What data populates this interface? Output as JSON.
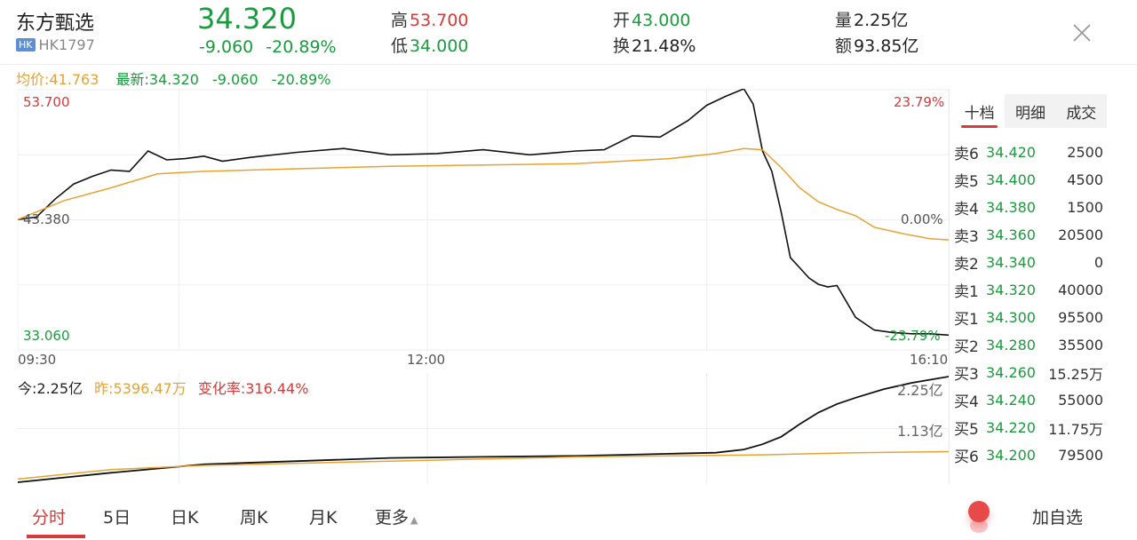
{
  "header": {
    "name": "东方甄选",
    "exchange_badge": "HK",
    "code": "HK1797",
    "price": "34.320",
    "change": "-9.060",
    "change_pct": "-20.89%",
    "high_label": "高",
    "high": "53.700",
    "low_label": "低",
    "low": "34.000",
    "open_label": "开",
    "open": "43.000",
    "turnover_label": "换",
    "turnover": "21.48%",
    "volume_label": "量",
    "volume": "2.25亿",
    "amount_label": "额",
    "amount": "93.85亿"
  },
  "legend": {
    "avg_label": "均价:",
    "avg": "41.763",
    "latest_label": "最新:",
    "latest": "34.320",
    "latest_change": "-9.060",
    "latest_pct": "-20.89%"
  },
  "chart_data": {
    "type": "line",
    "title": "",
    "xlabel": "",
    "ylabel": "",
    "x_ticks": [
      "09:30",
      "12:00",
      "16:10"
    ],
    "ylim": [
      33.06,
      53.7
    ],
    "y_labels": {
      "top": "53.700",
      "middle": "43.380",
      "bottom": "33.060"
    },
    "pct_labels": {
      "top": "23.79%",
      "middle": "0.00%",
      "bottom": "-23.79%"
    },
    "series": [
      {
        "color": "#111111",
        "x": [
          0,
          0.02,
          0.04,
          0.06,
          0.08,
          0.1,
          0.12,
          0.14,
          0.16,
          0.18,
          0.2,
          0.22,
          0.25,
          0.3,
          0.35,
          0.4,
          0.45,
          0.5,
          0.55,
          0.6,
          0.63,
          0.66,
          0.69,
          0.72,
          0.74,
          0.76,
          0.78,
          0.79,
          0.8,
          0.81,
          0.82,
          0.83,
          0.84,
          0.85,
          0.86,
          0.87,
          0.88,
          0.9,
          0.92,
          0.94,
          0.96,
          0.98,
          1.0
        ],
        "values": [
          43.4,
          43.6,
          45.0,
          46.2,
          46.8,
          47.3,
          47.2,
          48.8,
          48.1,
          48.2,
          48.4,
          48.0,
          48.3,
          48.7,
          49.0,
          48.5,
          48.6,
          48.9,
          48.5,
          48.8,
          48.9,
          50.0,
          49.9,
          51.2,
          52.4,
          53.1,
          53.7,
          52.5,
          48.8,
          47.2,
          44.0,
          40.4,
          39.6,
          38.8,
          38.3,
          38.1,
          38.2,
          35.7,
          34.7,
          34.5,
          34.4,
          34.4,
          34.3
        ]
      },
      {
        "color": "#e8a232",
        "x": [
          0,
          0.05,
          0.1,
          0.15,
          0.2,
          0.3,
          0.4,
          0.5,
          0.6,
          0.7,
          0.75,
          0.78,
          0.8,
          0.82,
          0.84,
          0.86,
          0.88,
          0.9,
          0.92,
          0.95,
          0.98,
          1.0
        ],
        "values": [
          43.4,
          44.9,
          45.9,
          47.0,
          47.2,
          47.4,
          47.6,
          47.7,
          47.8,
          48.2,
          48.6,
          49.0,
          48.9,
          47.5,
          45.9,
          44.8,
          44.2,
          43.7,
          42.8,
          42.3,
          41.9,
          41.8
        ]
      }
    ]
  },
  "volume_chart": {
    "type": "area",
    "today_label": "今:",
    "today": "2.25亿",
    "yesterday_label": "昨:",
    "yesterday": "5396.47万",
    "change_rate_label": "变化率:",
    "change_rate": "316.44%",
    "max_label": "2.25亿",
    "mid_label": "1.13亿",
    "series": [
      {
        "color": "#111111",
        "x": [
          0,
          0.1,
          0.2,
          0.3,
          0.4,
          0.5,
          0.6,
          0.65,
          0.7,
          0.75,
          0.78,
          0.8,
          0.82,
          0.84,
          0.86,
          0.88,
          0.9,
          0.93,
          0.96,
          1.0
        ],
        "values": [
          0.0,
          0.09,
          0.17,
          0.2,
          0.23,
          0.24,
          0.25,
          0.26,
          0.27,
          0.28,
          0.31,
          0.36,
          0.43,
          0.55,
          0.66,
          0.74,
          0.8,
          0.88,
          0.94,
          1.0
        ]
      },
      {
        "color": "#e8a232",
        "x": [
          0,
          0.1,
          0.2,
          0.3,
          0.4,
          0.5,
          0.6,
          0.7,
          0.8,
          0.9,
          1.0
        ],
        "values": [
          0.03,
          0.12,
          0.16,
          0.18,
          0.2,
          0.22,
          0.24,
          0.25,
          0.26,
          0.28,
          0.29
        ]
      }
    ]
  },
  "right_panel": {
    "tabs": [
      "十档",
      "明细",
      "成交"
    ],
    "asks": [
      {
        "label": "卖6",
        "price": "34.420",
        "qty": "2500"
      },
      {
        "label": "卖5",
        "price": "34.400",
        "qty": "4500"
      },
      {
        "label": "卖4",
        "price": "34.380",
        "qty": "1500"
      },
      {
        "label": "卖3",
        "price": "34.360",
        "qty": "20500"
      },
      {
        "label": "卖2",
        "price": "34.340",
        "qty": "0"
      },
      {
        "label": "卖1",
        "price": "34.320",
        "qty": "40000"
      }
    ],
    "bids": [
      {
        "label": "买1",
        "price": "34.300",
        "qty": "95500"
      },
      {
        "label": "买2",
        "price": "34.280",
        "qty": "35500"
      },
      {
        "label": "买3",
        "price": "34.260",
        "qty": "15.25万"
      },
      {
        "label": "买4",
        "price": "34.240",
        "qty": "55000"
      },
      {
        "label": "买5",
        "price": "34.220",
        "qty": "11.75万"
      },
      {
        "label": "买6",
        "price": "34.200",
        "qty": "79500"
      }
    ]
  },
  "bottom_tabs": [
    "分时",
    "5日",
    "日K",
    "周K",
    "月K",
    "更多"
  ],
  "add_watchlist": "加自选",
  "colors": {
    "up": "#d63a3a",
    "down": "#1a9c3e",
    "avg": "#e8a232",
    "line": "#111111"
  }
}
